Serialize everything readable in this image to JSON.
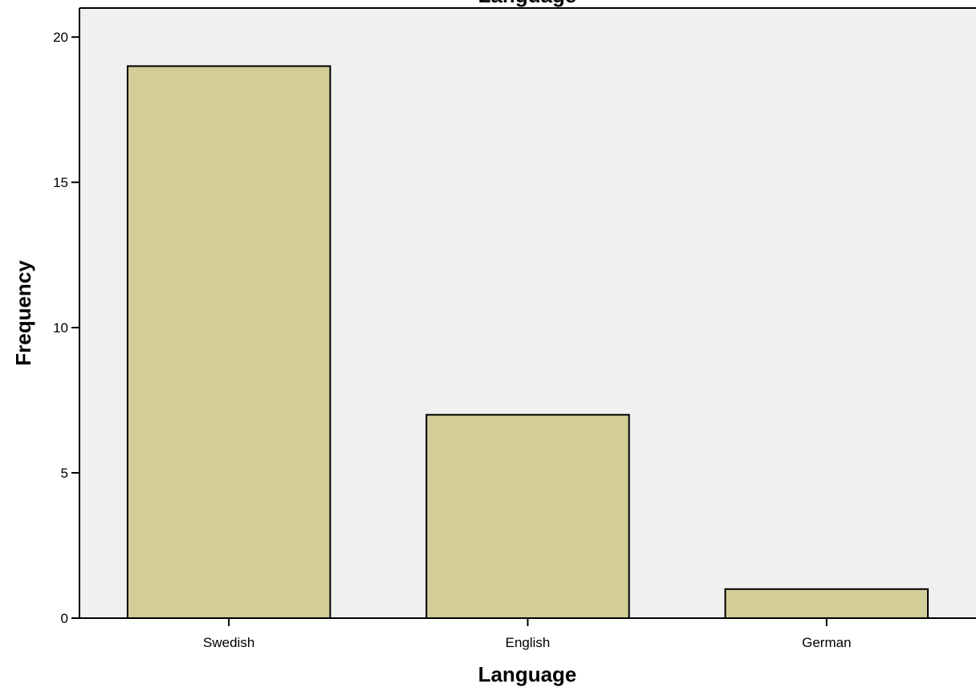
{
  "chart_data": {
    "type": "bar",
    "title": "Language",
    "xlabel": "Language",
    "ylabel": "Frequency",
    "categories": [
      "Swedish",
      "English",
      "German"
    ],
    "values": [
      19,
      7,
      1
    ],
    "ylim": [
      0,
      21
    ],
    "yticks": [
      0,
      5,
      10,
      15,
      20
    ],
    "grid": false,
    "legend": "none",
    "colors": {
      "bar_fill": "#d3cd98",
      "bar_stroke": "#000000",
      "plot_background": "#f0f0f0"
    }
  }
}
